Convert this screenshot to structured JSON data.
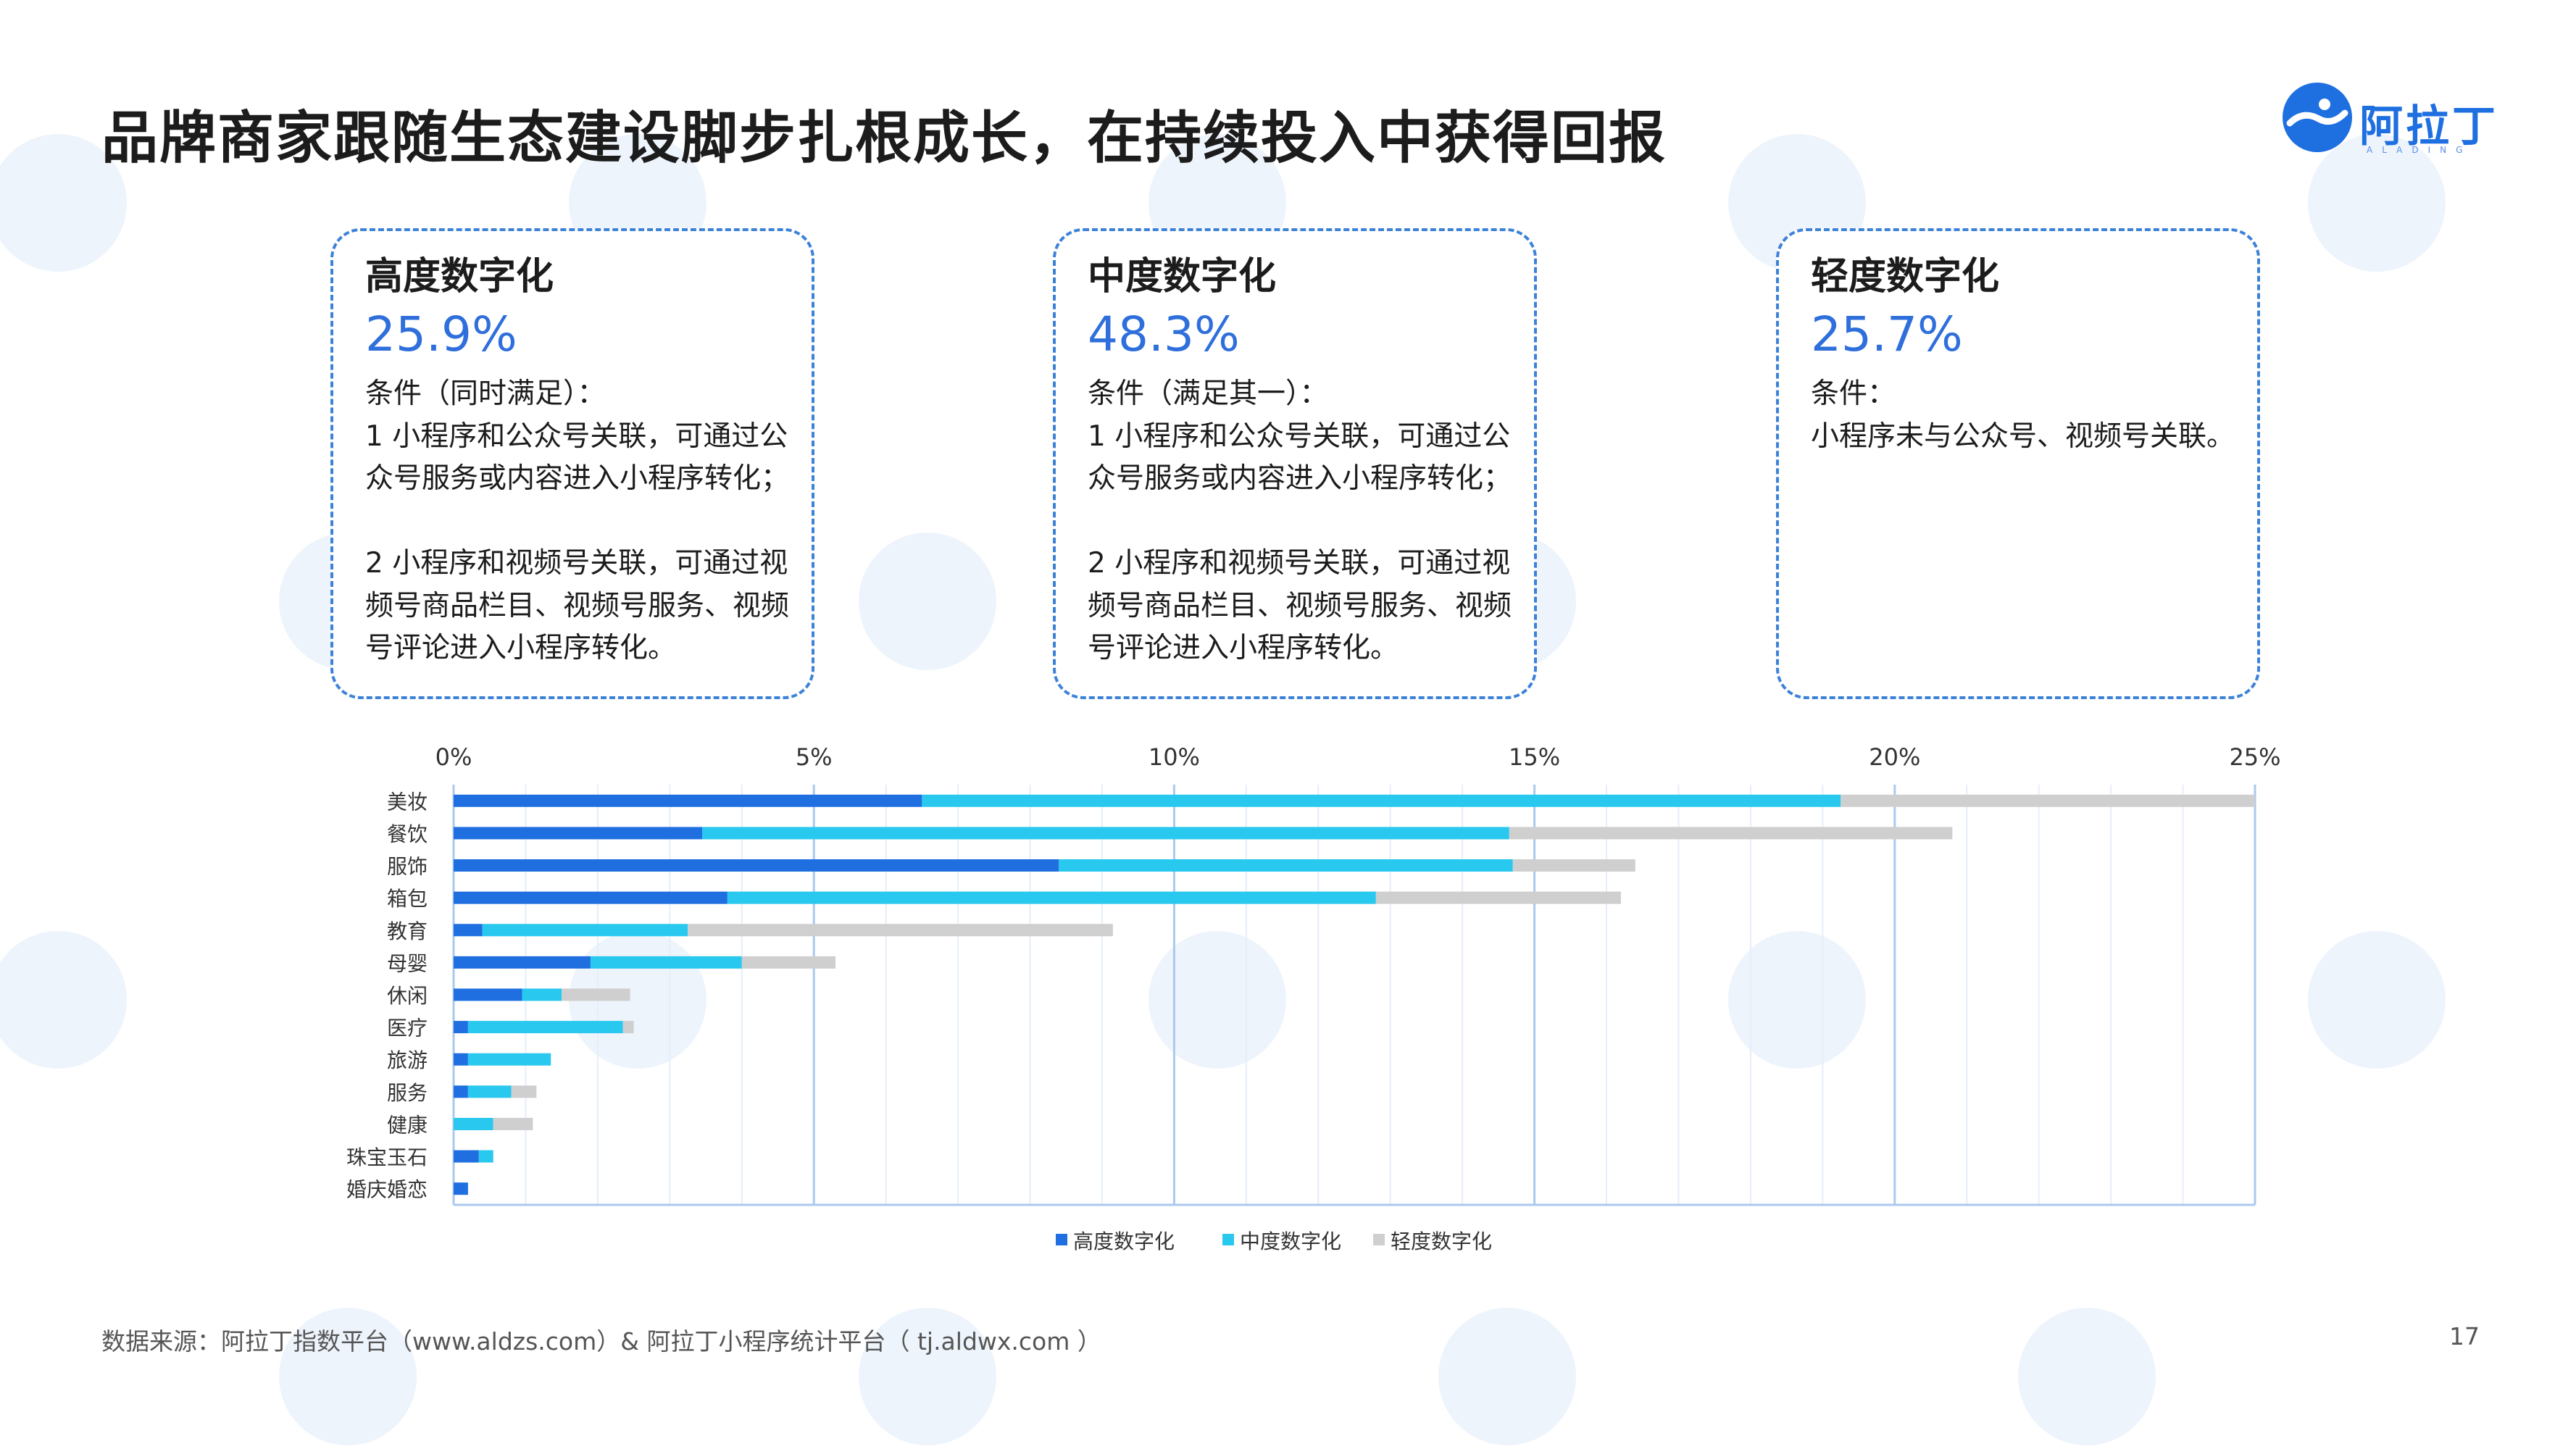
{
  "title": "品牌商家跟随生态建设脚步扎根成长，在持续投入中获得回报",
  "logo": {
    "text": "阿拉丁",
    "sub": "ALADING"
  },
  "cards": [
    {
      "title": "高度数字化",
      "value": "25.9%",
      "text": "条件（同时满足）：\n1 小程序和公众号关联，可通过公众号服务或内容进入小程序转化；\n\n2 小程序和视频号关联，可通过视频号商品栏目、视频号服务、视频号评论进入小程序转化。"
    },
    {
      "title": "中度数字化",
      "value": "48.3%",
      "text": "条件（满足其一）：\n1 小程序和公众号关联，可通过公众号服务或内容进入小程序转化；\n\n2 小程序和视频号关联，可通过视频号商品栏目、视频号服务、视频号评论进入小程序转化。"
    },
    {
      "title": "轻度数字化",
      "value": "25.7%",
      "text": "条件：\n小程序未与公众号、视频号关联。"
    }
  ],
  "chart_data": {
    "type": "bar",
    "orientation": "horizontal",
    "stacked": true,
    "categories": [
      "美妆",
      "餐饮",
      "服饰",
      "箱包",
      "教育",
      "母婴",
      "休闲",
      "医疗",
      "旅游",
      "服务",
      "健康",
      "珠宝玉石",
      "婚庆婚恋"
    ],
    "series": [
      {
        "name": "高度数字化",
        "color": "#1f6fe0",
        "values": [
          6.5,
          3.45,
          8.4,
          3.8,
          0.4,
          1.9,
          0.95,
          0.2,
          0.2,
          0.2,
          0.0,
          0.35,
          0.2
        ]
      },
      {
        "name": "中度数字化",
        "color": "#29c8ee",
        "values": [
          12.75,
          11.2,
          6.3,
          9.0,
          2.85,
          2.1,
          0.55,
          2.15,
          1.15,
          0.6,
          0.55,
          0.2,
          0.0
        ]
      },
      {
        "name": "轻度数字化",
        "color": "#cfcfcf",
        "values": [
          5.75,
          6.15,
          1.7,
          3.4,
          5.9,
          1.3,
          0.95,
          0.15,
          0.0,
          0.35,
          0.55,
          0.0,
          0.0
        ]
      }
    ],
    "x_ticks": [
      "0%",
      "5%",
      "10%",
      "15%",
      "20%",
      "25%"
    ],
    "xlim": [
      0,
      25
    ],
    "x_axis_position": "top",
    "legend_position": "bottom",
    "grid": true
  },
  "footer": {
    "source": "数据来源：阿拉丁指数平台（www.aldzs.com）& 阿拉丁小程序统计平台（ tj.aldwx.com ）",
    "page": "17"
  },
  "colors": {
    "accent": "#2f6fdc",
    "card_border": "#3d82d8"
  }
}
